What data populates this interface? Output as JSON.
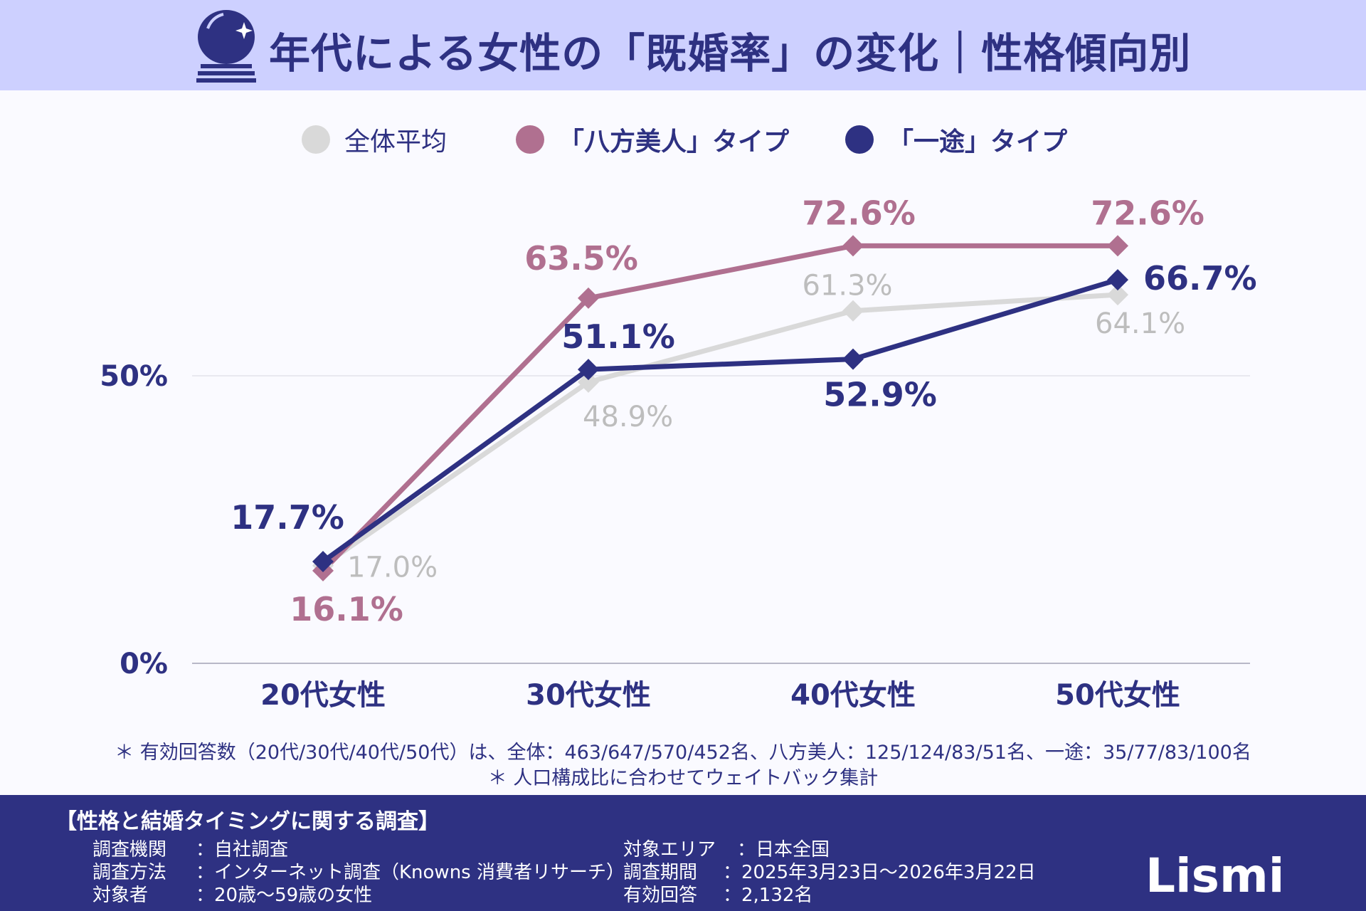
{
  "header": {
    "title": "年代による女性の「既婚率」の変化｜性格傾向別",
    "icon": "crystal-ball-icon"
  },
  "legend": [
    {
      "label": "全体平均",
      "color": "#d9d9d9"
    },
    {
      "label": "「八方美人」タイプ",
      "color": "#b07090"
    },
    {
      "label": "「一途」タイプ",
      "color": "#2e3182"
    }
  ],
  "chart_data": {
    "type": "line",
    "categories": [
      "20代女性",
      "30代女性",
      "40代女性",
      "50代女性"
    ],
    "ylim": [
      0,
      100
    ],
    "yticks": [
      {
        "v": 0,
        "label": "0%"
      },
      {
        "v": 50,
        "label": "50%"
      }
    ],
    "legend_position": "top",
    "series": [
      {
        "name": "全体平均",
        "color": "#d9d9d9",
        "label_color": "#bdbdbd",
        "values": [
          17.0,
          48.9,
          61.3,
          64.1
        ],
        "labels": [
          "17.0%",
          "48.9%",
          "61.3%",
          "64.1%"
        ]
      },
      {
        "name": "「八方美人」タイプ",
        "color": "#b07090",
        "label_color": "#b07090",
        "values": [
          16.1,
          63.5,
          72.6,
          72.6
        ],
        "labels": [
          "16.1%",
          "63.5%",
          "72.6%",
          "72.6%"
        ]
      },
      {
        "name": "「一途」タイプ",
        "color": "#2e3182",
        "label_color": "#2e3182",
        "values": [
          17.7,
          51.1,
          52.9,
          66.7
        ],
        "labels": [
          "17.7%",
          "51.1%",
          "52.9%",
          "66.7%"
        ]
      }
    ]
  },
  "notes": [
    "＊ 有効回答数（20代/30代/40代/50代）は、全体：463/647/570/452名、八方美人：125/124/83/51名、一途：35/77/83/100名",
    "＊ 人口構成比に合わせてウェイトバック集計"
  ],
  "footer": {
    "title": "【性格と結婚タイミングに関する調査】",
    "left": [
      {
        "k": "調査機関",
        "v": "：自社調査"
      },
      {
        "k": "調査方法",
        "v": "：インターネット調査（Knowns 消費者リサーチ）"
      },
      {
        "k": "対象者",
        "v": "：20歳〜59歳の女性"
      }
    ],
    "right": [
      {
        "k": "対象エリア",
        "v": "：日本全国"
      },
      {
        "k": "調査期間",
        "v": "：2025年3月23日〜2026年3月22日"
      },
      {
        "k": "有効回答",
        "v": "：2,132名"
      }
    ],
    "logo": "Lismi"
  }
}
